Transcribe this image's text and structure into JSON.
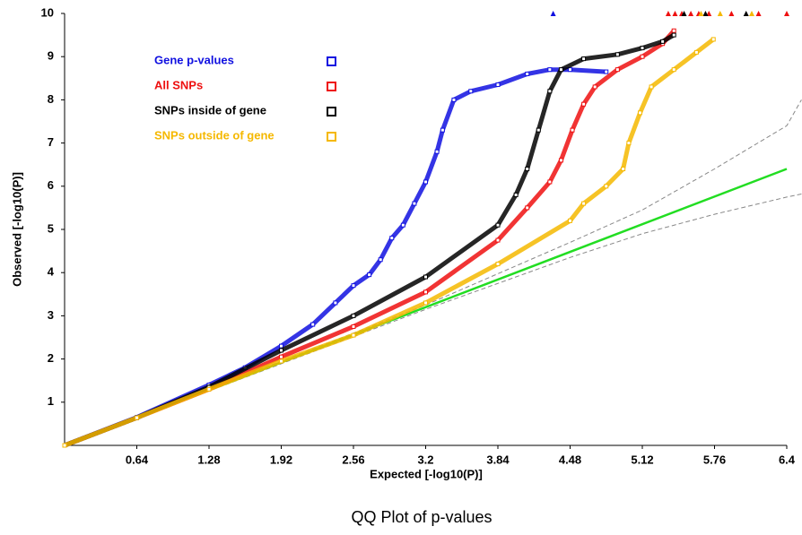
{
  "chart_data": {
    "type": "scatter",
    "title": "QQ Plot of p-values",
    "x_label": "Expected [-log10(P)]",
    "y_label": "Observed [-log10(P)]",
    "xlim": [
      0,
      6.4
    ],
    "ylim": [
      0,
      10
    ],
    "xticks": [
      0.64,
      1.28,
      1.92,
      2.56,
      3.2,
      3.84,
      4.48,
      5.12,
      5.76,
      6.4
    ],
    "yticks": [
      1,
      2,
      3,
      4,
      5,
      6,
      7,
      8,
      9,
      10
    ],
    "legend": "top-left",
    "series": [
      {
        "name": "Gene p-values",
        "color": "#1010e0",
        "x": [
          0,
          0.64,
          1.28,
          1.6,
          1.92,
          2.2,
          2.4,
          2.56,
          2.7,
          2.8,
          2.9,
          3.0,
          3.1,
          3.2,
          3.3,
          3.35,
          3.45,
          3.6,
          3.84,
          4.1,
          4.3,
          4.48,
          4.8
        ],
        "values": [
          0,
          0.65,
          1.4,
          1.8,
          2.3,
          2.8,
          3.3,
          3.7,
          3.95,
          4.3,
          4.8,
          5.1,
          5.6,
          6.1,
          6.8,
          7.3,
          8.0,
          8.2,
          8.35,
          8.6,
          8.7,
          8.7,
          8.65
        ],
        "capped_x": [
          4.33
        ]
      },
      {
        "name": "All SNPs",
        "color": "#ee1010",
        "x": [
          0,
          0.64,
          1.28,
          1.92,
          2.56,
          3.2,
          3.84,
          4.1,
          4.3,
          4.4,
          4.5,
          4.6,
          4.7,
          4.9,
          5.12,
          5.3,
          5.4
        ],
        "values": [
          0,
          0.64,
          1.3,
          2.05,
          2.75,
          3.55,
          4.75,
          5.5,
          6.1,
          6.6,
          7.3,
          7.9,
          8.3,
          8.7,
          9.0,
          9.3,
          9.6
        ],
        "capped_x": [
          5.35,
          5.41,
          5.47,
          5.55,
          5.62,
          5.71,
          5.91,
          6.15,
          6.4
        ]
      },
      {
        "name": "SNPs inside of gene",
        "color": "#000000",
        "x": [
          0,
          0.64,
          1.28,
          1.92,
          2.56,
          3.2,
          3.84,
          4.0,
          4.1,
          4.2,
          4.3,
          4.4,
          4.6,
          4.9,
          5.12,
          5.3,
          5.4
        ],
        "values": [
          0,
          0.64,
          1.35,
          2.2,
          3.0,
          3.9,
          5.1,
          5.8,
          6.4,
          7.3,
          8.2,
          8.7,
          8.95,
          9.05,
          9.2,
          9.35,
          9.5
        ],
        "capped_x": [
          5.49,
          5.68,
          6.04
        ]
      },
      {
        "name": "SNPs outside of gene",
        "color": "#f5b800",
        "x": [
          0,
          0.64,
          1.28,
          1.92,
          2.56,
          3.2,
          3.84,
          4.48,
          4.6,
          4.8,
          4.95,
          5.0,
          5.1,
          5.2,
          5.4,
          5.6,
          5.75
        ],
        "values": [
          0,
          0.64,
          1.3,
          1.95,
          2.55,
          3.3,
          4.2,
          5.2,
          5.6,
          6.0,
          6.4,
          7.0,
          7.7,
          8.3,
          8.7,
          9.1,
          9.4
        ],
        "capped_x": [
          5.64,
          5.81,
          6.09
        ]
      }
    ],
    "expected_line": {
      "color": "#22dd22",
      "x": [
        0,
        6.4
      ],
      "values": [
        0,
        6.4
      ]
    },
    "confidence_band": {
      "color": "#888888",
      "x": [
        0,
        3.2,
        4.48,
        5.12,
        5.76,
        6.4,
        6.53
      ],
      "upper": [
        0,
        3.25,
        4.7,
        5.45,
        6.4,
        7.4,
        8.0
      ],
      "lower": [
        0,
        3.15,
        4.35,
        4.9,
        5.35,
        5.75,
        5.82
      ]
    }
  }
}
